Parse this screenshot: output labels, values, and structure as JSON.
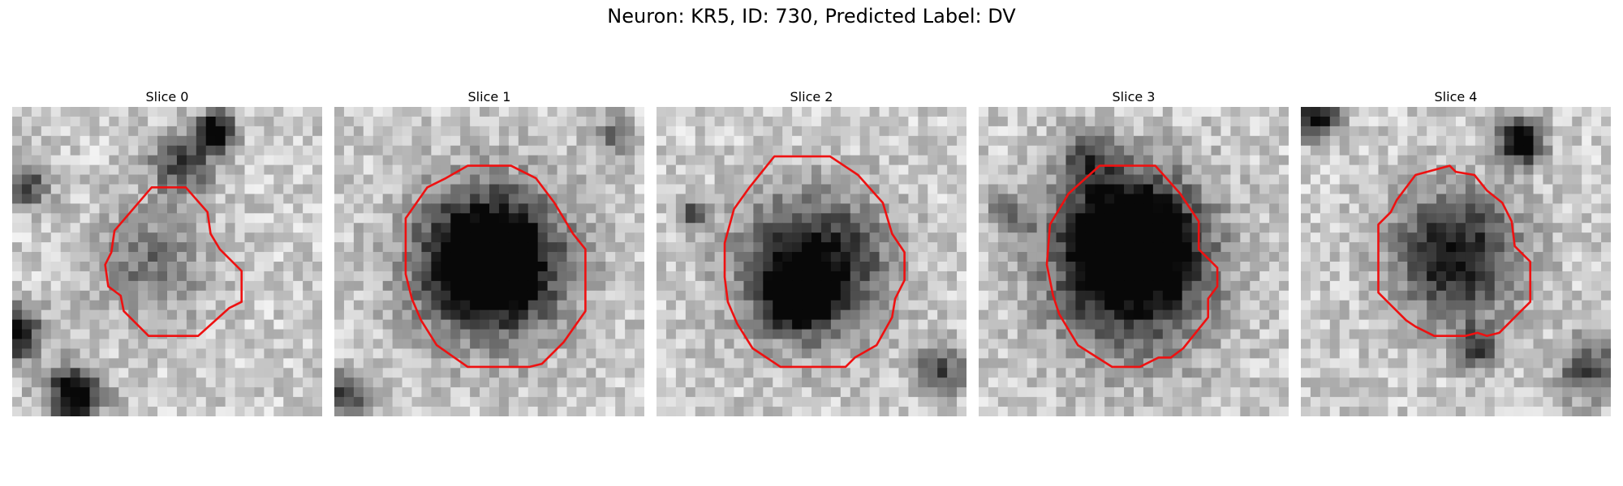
{
  "figure": {
    "suptitle": "Neuron: KR5, ID: 730, Predicted Label: DV"
  },
  "outline_color": "#ee1111",
  "slices": [
    {
      "title": "Slice 0",
      "outline": [
        [
          0.45,
          0.26
        ],
        [
          0.56,
          0.26
        ],
        [
          0.63,
          0.34
        ],
        [
          0.64,
          0.41
        ],
        [
          0.67,
          0.46
        ],
        [
          0.74,
          0.53
        ],
        [
          0.74,
          0.63
        ],
        [
          0.7,
          0.65
        ],
        [
          0.6,
          0.74
        ],
        [
          0.44,
          0.74
        ],
        [
          0.36,
          0.66
        ],
        [
          0.35,
          0.61
        ],
        [
          0.31,
          0.58
        ],
        [
          0.3,
          0.51
        ],
        [
          0.32,
          0.47
        ],
        [
          0.33,
          0.4
        ]
      ],
      "dark_spots": [
        [
          0.66,
          0.08,
          0.06,
          0.95
        ],
        [
          0.01,
          0.73,
          0.08,
          0.9
        ],
        [
          0.2,
          0.93,
          0.09,
          0.9
        ],
        [
          0.05,
          0.25,
          0.07,
          0.55
        ],
        [
          0.55,
          0.18,
          0.1,
          0.55
        ],
        [
          0.45,
          0.5,
          0.18,
          0.35
        ]
      ]
    },
    {
      "title": "Slice 1",
      "outline": [
        [
          0.43,
          0.19
        ],
        [
          0.57,
          0.19
        ],
        [
          0.65,
          0.23
        ],
        [
          0.71,
          0.31
        ],
        [
          0.77,
          0.41
        ],
        [
          0.81,
          0.46
        ],
        [
          0.81,
          0.66
        ],
        [
          0.74,
          0.76
        ],
        [
          0.67,
          0.83
        ],
        [
          0.63,
          0.84
        ],
        [
          0.43,
          0.84
        ],
        [
          0.33,
          0.77
        ],
        [
          0.28,
          0.69
        ],
        [
          0.25,
          0.62
        ],
        [
          0.23,
          0.54
        ],
        [
          0.23,
          0.36
        ],
        [
          0.3,
          0.26
        ],
        [
          0.36,
          0.23
        ]
      ],
      "dark_spots": [
        [
          0.5,
          0.5,
          0.17,
          1.0
        ],
        [
          0.5,
          0.5,
          0.27,
          0.55
        ],
        [
          0.04,
          0.93,
          0.07,
          0.6
        ],
        [
          0.9,
          0.1,
          0.07,
          0.35
        ]
      ]
    },
    {
      "title": "Slice 2",
      "outline": [
        [
          0.38,
          0.16
        ],
        [
          0.56,
          0.16
        ],
        [
          0.65,
          0.22
        ],
        [
          0.73,
          0.31
        ],
        [
          0.76,
          0.41
        ],
        [
          0.8,
          0.47
        ],
        [
          0.8,
          0.56
        ],
        [
          0.77,
          0.62
        ],
        [
          0.76,
          0.68
        ],
        [
          0.71,
          0.77
        ],
        [
          0.64,
          0.81
        ],
        [
          0.61,
          0.84
        ],
        [
          0.4,
          0.84
        ],
        [
          0.31,
          0.78
        ],
        [
          0.26,
          0.7
        ],
        [
          0.23,
          0.63
        ],
        [
          0.22,
          0.55
        ],
        [
          0.22,
          0.44
        ],
        [
          0.25,
          0.33
        ],
        [
          0.3,
          0.26
        ]
      ],
      "dark_spots": [
        [
          0.5,
          0.52,
          0.22,
          0.9
        ],
        [
          0.45,
          0.62,
          0.08,
          1.0
        ],
        [
          0.92,
          0.85,
          0.08,
          0.5
        ],
        [
          0.12,
          0.35,
          0.06,
          0.45
        ]
      ]
    },
    {
      "title": "Slice 3",
      "outline": [
        [
          0.39,
          0.19
        ],
        [
          0.57,
          0.19
        ],
        [
          0.65,
          0.28
        ],
        [
          0.71,
          0.37
        ],
        [
          0.71,
          0.46
        ],
        [
          0.77,
          0.52
        ],
        [
          0.77,
          0.58
        ],
        [
          0.74,
          0.62
        ],
        [
          0.74,
          0.68
        ],
        [
          0.66,
          0.78
        ],
        [
          0.62,
          0.81
        ],
        [
          0.58,
          0.81
        ],
        [
          0.52,
          0.84
        ],
        [
          0.43,
          0.84
        ],
        [
          0.32,
          0.77
        ],
        [
          0.26,
          0.67
        ],
        [
          0.24,
          0.61
        ],
        [
          0.22,
          0.51
        ],
        [
          0.23,
          0.38
        ],
        [
          0.29,
          0.28
        ]
      ],
      "dark_spots": [
        [
          0.48,
          0.42,
          0.2,
          0.95
        ],
        [
          0.5,
          0.55,
          0.27,
          0.6
        ],
        [
          0.35,
          0.15,
          0.09,
          0.45
        ],
        [
          0.1,
          0.35,
          0.07,
          0.35
        ]
      ]
    },
    {
      "title": "Slice 4",
      "outline": [
        [
          0.48,
          0.19
        ],
        [
          0.5,
          0.21
        ],
        [
          0.56,
          0.22
        ],
        [
          0.6,
          0.27
        ],
        [
          0.65,
          0.31
        ],
        [
          0.68,
          0.37
        ],
        [
          0.69,
          0.45
        ],
        [
          0.74,
          0.5
        ],
        [
          0.74,
          0.63
        ],
        [
          0.71,
          0.66
        ],
        [
          0.64,
          0.73
        ],
        [
          0.6,
          0.74
        ],
        [
          0.57,
          0.73
        ],
        [
          0.53,
          0.74
        ],
        [
          0.43,
          0.74
        ],
        [
          0.37,
          0.71
        ],
        [
          0.34,
          0.69
        ],
        [
          0.29,
          0.64
        ],
        [
          0.25,
          0.6
        ],
        [
          0.25,
          0.38
        ],
        [
          0.29,
          0.34
        ],
        [
          0.31,
          0.3
        ],
        [
          0.37,
          0.22
        ]
      ],
      "dark_spots": [
        [
          0.71,
          0.11,
          0.07,
          1.0
        ],
        [
          0.05,
          0.04,
          0.07,
          0.8
        ],
        [
          0.5,
          0.48,
          0.2,
          0.75
        ],
        [
          0.57,
          0.78,
          0.07,
          0.6
        ],
        [
          0.93,
          0.85,
          0.1,
          0.55
        ]
      ]
    }
  ]
}
